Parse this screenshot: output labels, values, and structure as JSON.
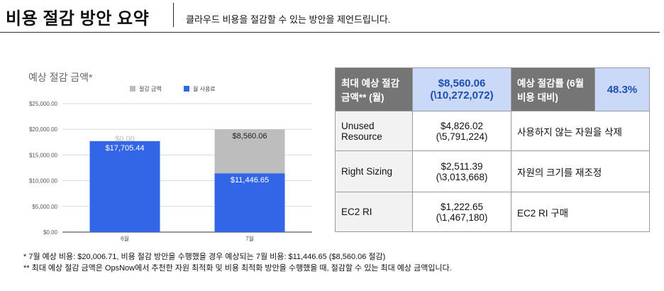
{
  "header": {
    "title": "비용 절감 방안 요약",
    "subtitle": "클라우드 비용을 절감할 수 있는 방안을 제언드립니다."
  },
  "chart_title": "예상 절감 금액*",
  "chart_data": {
    "type": "bar",
    "stacked": true,
    "categories": [
      "6월",
      "7월"
    ],
    "series": [
      {
        "name": "월 사용료",
        "values": [
          17705.44,
          11446.65
        ],
        "labels": [
          "$17,705.44",
          "$11,446.65"
        ],
        "color": "#3366e6"
      },
      {
        "name": "절감 금액",
        "values": [
          0,
          8560.06
        ],
        "labels": [
          "$0.00",
          "$8,560.06"
        ],
        "color": "#bdbdbd"
      }
    ],
    "legend_order": [
      "절감 금액",
      "월 사용료"
    ],
    "legend_position": "top",
    "ylim": [
      0,
      25000
    ],
    "yticks": [
      0,
      5000,
      10000,
      15000,
      20000,
      25000
    ],
    "ytick_labels": [
      "$0.00",
      "$5,000.00",
      "$10,000.00",
      "$15,000.00",
      "$20,000.00",
      "$25,000.00"
    ],
    "grid": true
  },
  "table": {
    "max_label": "최대 예상 절감 금액** (월)",
    "max_value_usd": "$8,560.06",
    "max_value_krw": "(\\10,272,072)",
    "rate_label": "예상 절감률 (6월 비용 대비)",
    "rate_value": "48.3%",
    "rows": [
      {
        "name": "Unused Resource",
        "usd": "$4,826.02",
        "krw": "(\\5,791,224)",
        "desc": "사용하지 않는 자원을 삭제"
      },
      {
        "name": "Right Sizing",
        "usd": "$2,511.39",
        "krw": "(\\3,013,668)",
        "desc": "자원의 크기를 재조정"
      },
      {
        "name": "EC2 RI",
        "usd": "$1,222.65",
        "krw": "(\\1,467,180)",
        "desc": "EC2 RI 구매"
      }
    ]
  },
  "notes": [
    "* 7월 예상 비용: $20,006.71, 비용 절감 방안을 수행했을 경우 예상되는 7월 비용: $11,446.65 ($8,560.06 절감)",
    "** 최대 예상 절감 금액은 OpsNow에서 추천한 자원 최적화 및 비용 최적화 방안을 수행했을 때, 절감할 수 있는 최대 예상 금액입니다."
  ]
}
